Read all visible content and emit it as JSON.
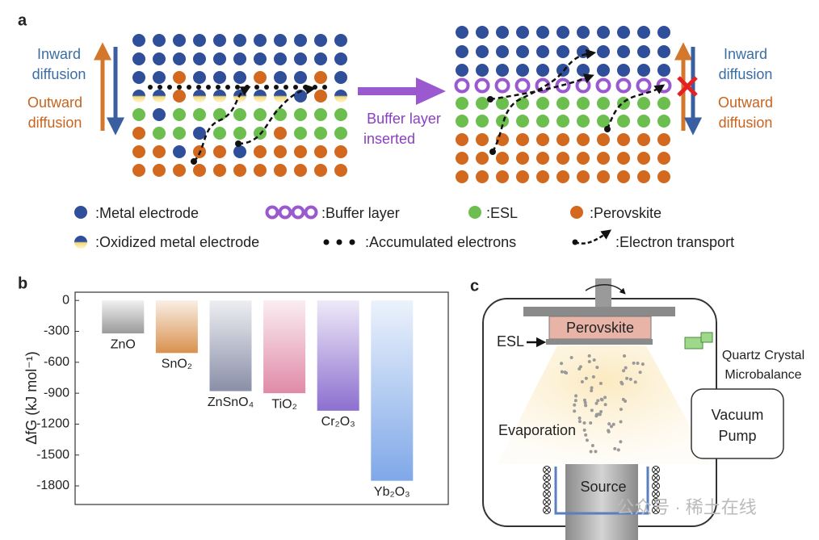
{
  "panel_labels": [
    "a",
    "b",
    "c"
  ],
  "panel_a": {
    "left_inward": [
      "Inward",
      "diffusion"
    ],
    "left_outward": [
      "Outward",
      "diffusion"
    ],
    "arrow_label": [
      "Buffer layer",
      "inserted"
    ],
    "right_inward": [
      "Inward",
      "diffusion"
    ],
    "right_outward": [
      "Outward",
      "diffusion"
    ],
    "legend": [
      ":Metal electrode",
      ":Buffer layer",
      ":ESL",
      ":Perovskite",
      ":Oxidized metal electrode",
      ":Accumulated electrons",
      ":Electron transport"
    ]
  },
  "chart_data": {
    "type": "bar",
    "ylabel": "ΔfG (kJ mol⁻¹)",
    "categories": [
      "ZnO",
      "SnO₂",
      "ZnSnO₄",
      "TiO₂",
      "Cr₂O₃",
      "Yb₂O₃"
    ],
    "values": [
      -320,
      -510,
      -880,
      -900,
      -1070,
      -1750
    ],
    "colors": [
      "#9a9a9a",
      "#d9914e",
      "#8a8fa8",
      "#e08aa8",
      "#8d6fd0",
      "#7fa8e8"
    ],
    "ylim": [
      -1980,
      80
    ],
    "yticks": [
      0,
      -300,
      -600,
      -900,
      -1200,
      -1500,
      -1800
    ]
  },
  "panel_c": {
    "perovskite": "Perovskite",
    "esl": "ESL",
    "qcm": [
      "Quartz Crystal",
      "Microbalance"
    ],
    "pump": [
      "Vacuum",
      "Pump"
    ],
    "evaporation": "Evaporation",
    "source": "Source"
  },
  "watermark": "公众号 · 稀土在线"
}
